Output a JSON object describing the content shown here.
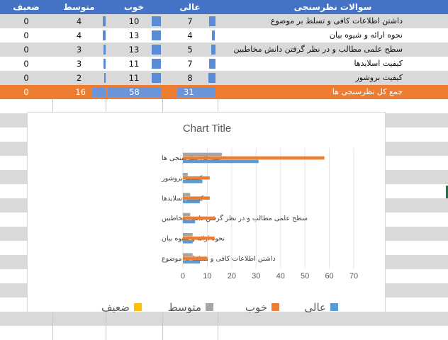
{
  "header": {
    "question": "سوالات نظرسنجی",
    "excellent": "عالی",
    "good": "خوب",
    "average": "متوسط",
    "weak": "ضعیف"
  },
  "rows": [
    {
      "question": "داشتن اطلاعات کافی و تسلط بر موضوع",
      "excellent": "7",
      "good": "10",
      "average": "4",
      "weak": "0"
    },
    {
      "question": "نحوه ارائه و شیوه بیان",
      "excellent": "4",
      "good": "13",
      "average": "4",
      "weak": "0"
    },
    {
      "question": "سطح علمی مطالب و در نظر گرفتن دانش مخاطبین",
      "excellent": "5",
      "good": "13",
      "average": "3",
      "weak": "0"
    },
    {
      "question": "کیفیت اسلایدها",
      "excellent": "7",
      "good": "11",
      "average": "3",
      "weak": "0"
    },
    {
      "question": "کیفیت بروشور",
      "excellent": "8",
      "good": "11",
      "average": "2",
      "weak": "0"
    }
  ],
  "total": {
    "question": "جمع کل نظرسنجی ها",
    "excellent": "31",
    "good": "58",
    "average": "16",
    "weak": "0"
  },
  "colors": {
    "excellent": "#5b9bd5",
    "good": "#ed7d31",
    "average": "#a5a5a5",
    "weak": "#ffc000"
  },
  "chart_data": {
    "type": "bar",
    "orientation": "horizontal",
    "title": "Chart Title",
    "categories": [
      "جمع کل نظرسنجی ها",
      "کیفیت بروشور",
      "کیفیت اسلایدها",
      "سطح علمی مطالب و در نظر گرفتن دانش مخاطبین",
      "نحوه ارائه و شیوه بیان",
      "داشتن اطلاعات کافی و تسلط بر موضوع"
    ],
    "series": [
      {
        "name": "عالی",
        "values": [
          31,
          8,
          7,
          5,
          4,
          7
        ]
      },
      {
        "name": "خوب",
        "values": [
          58,
          11,
          11,
          13,
          13,
          10
        ]
      },
      {
        "name": "متوسط",
        "values": [
          16,
          2,
          3,
          3,
          4,
          4
        ]
      },
      {
        "name": "ضعیف",
        "values": [
          0,
          0,
          0,
          0,
          0,
          0
        ]
      }
    ],
    "xlim": [
      0,
      70
    ],
    "xticks": [
      "0",
      "10",
      "20",
      "30",
      "40",
      "50",
      "60",
      "70"
    ],
    "legend": "bottom"
  }
}
